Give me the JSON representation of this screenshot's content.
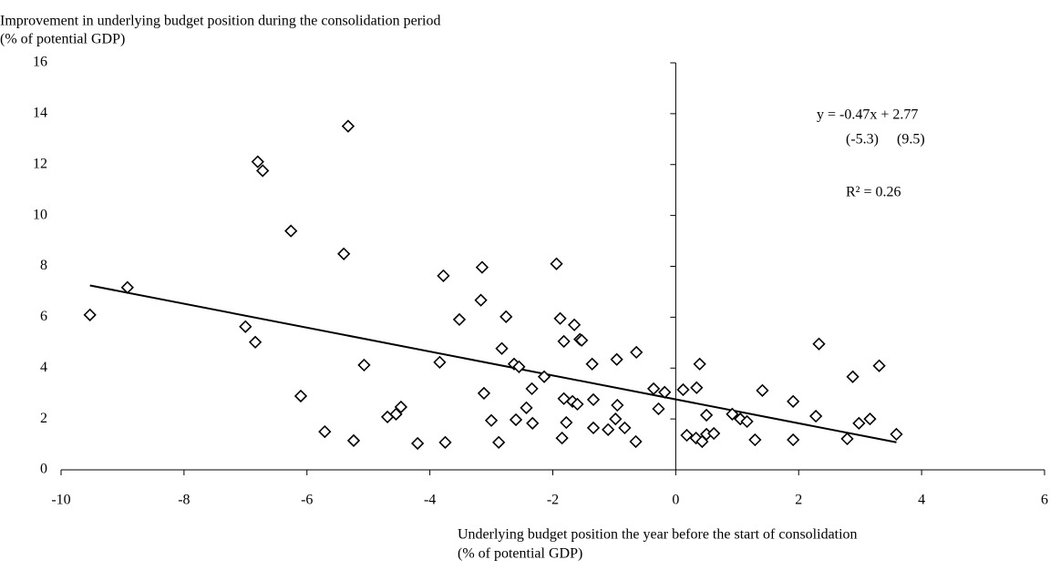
{
  "chart_data": {
    "type": "scatter",
    "y_axis_title": [
      "Improvement in underlying budget position during the consolidation period",
      "(% of potential GDP)"
    ],
    "x_axis_title": [
      "Underlying budget position the year before the start of consolidation",
      "(% of potential GDP)"
    ],
    "annotations": {
      "equation": "y = -0.47x + 2.77",
      "t_stats": "(-5.3)     (9.5)",
      "r_squared": "R² = 0.26"
    },
    "trendline": {
      "slope": -0.47,
      "intercept": 2.77
    },
    "color": "#000000",
    "xlim": [
      -10,
      6
    ],
    "xticks": [
      -10,
      -8,
      -6,
      -4,
      -2,
      0,
      2,
      4,
      6
    ],
    "ylim": [
      0,
      16
    ],
    "yticks": [
      0,
      2,
      4,
      6,
      8,
      10,
      12,
      14,
      16
    ],
    "grid": false,
    "x": [
      -9.53,
      -8.92,
      -7.0,
      -6.84,
      -6.8,
      -6.72,
      -6.26,
      -6.1,
      -5.71,
      -5.4,
      -5.33,
      -5.24,
      -5.07,
      -4.69,
      -4.55,
      -4.47,
      -4.2,
      -3.84,
      -3.78,
      -3.75,
      -3.52,
      -3.17,
      -3.15,
      -3.12,
      -3.0,
      -2.88,
      -2.83,
      -2.76,
      -2.63,
      -2.6,
      -2.55,
      -2.43,
      -2.34,
      -2.33,
      -2.14,
      -1.94,
      -1.88,
      -1.85,
      -1.82,
      -1.82,
      -1.78,
      -1.68,
      -1.65,
      -1.6,
      -1.56,
      -1.53,
      -1.36,
      -1.34,
      -1.34,
      -1.1,
      -0.98,
      -0.96,
      -0.95,
      -0.83,
      -0.64,
      -0.65,
      -0.36,
      -0.28,
      -0.18,
      0.12,
      0.18,
      0.34,
      0.39,
      0.33,
      0.43,
      0.5,
      0.5,
      0.62,
      0.92,
      1.05,
      1.16,
      1.29,
      1.41,
      1.91,
      1.91,
      2.28,
      2.33,
      2.79,
      2.88,
      2.98,
      3.16,
      3.31,
      3.59
    ],
    "values": [
      6.09,
      7.17,
      5.63,
      5.02,
      12.11,
      11.76,
      9.39,
      2.9,
      1.5,
      8.49,
      13.51,
      1.15,
      4.12,
      2.08,
      2.19,
      2.47,
      1.04,
      4.23,
      7.63,
      1.08,
      5.91,
      6.67,
      7.96,
      3.01,
      1.94,
      1.08,
      4.77,
      6.02,
      4.16,
      1.97,
      4.05,
      2.44,
      3.19,
      1.83,
      3.66,
      8.1,
      5.95,
      1.25,
      5.05,
      2.8,
      1.86,
      2.69,
      5.7,
      2.58,
      5.13,
      5.09,
      4.16,
      1.65,
      2.76,
      1.58,
      2.0,
      4.34,
      2.54,
      1.65,
      4.62,
      1.11,
      3.19,
      2.4,
      3.05,
      3.15,
      1.36,
      3.23,
      4.16,
      1.25,
      1.11,
      2.15,
      1.4,
      1.43,
      2.19,
      2.0,
      1.9,
      1.18,
      3.12,
      2.69,
      1.18,
      2.11,
      4.95,
      1.22,
      3.66,
      1.83,
      2.0,
      4.09,
      1.4
    ]
  }
}
